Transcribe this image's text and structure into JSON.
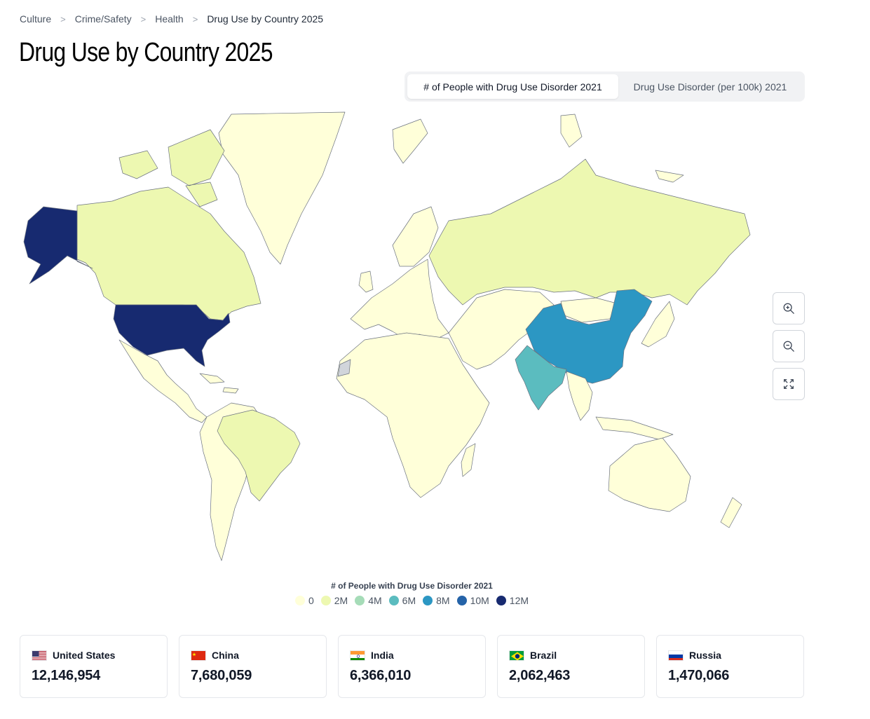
{
  "breadcrumb": {
    "items": [
      "Culture",
      "Crime/Safety",
      "Health",
      "Drug Use by Country 2025"
    ],
    "separator": ">"
  },
  "page": {
    "title": "Drug Use by Country 2025"
  },
  "tabs": [
    {
      "label": "# of People with Drug Use Disorder 2021",
      "active": true
    },
    {
      "label": "Drug Use Disorder (per 100k) 2021",
      "active": false
    }
  ],
  "map": {
    "metric": "# of People with Drug Use Disorder 2021",
    "colors": {
      "c0": "#ffffd9",
      "c2": "#edf8b1",
      "c4": "#c7e9b4",
      "c6": "#5bbcbf",
      "c8": "#2c97c3",
      "c10": "#2563a8",
      "c12": "#172a70",
      "nodata": "#d1d5db",
      "ocean": "#ffffff"
    },
    "highlighted_countries": [
      {
        "name": "United States",
        "bucket": "12M"
      },
      {
        "name": "China",
        "bucket": "8M"
      },
      {
        "name": "India",
        "bucket": "6M"
      },
      {
        "name": "Brazil",
        "bucket": "2M"
      },
      {
        "name": "Russia",
        "bucket": "2M"
      }
    ]
  },
  "zoom": {
    "in_icon": "zoom-in-icon",
    "out_icon": "zoom-out-icon",
    "fit_icon": "fullscreen-icon"
  },
  "legend": {
    "title": "# of People with Drug Use Disorder 2021",
    "items": [
      {
        "label": "0",
        "color": "#ffffd9"
      },
      {
        "label": "2M",
        "color": "#edf8b1"
      },
      {
        "label": "4M",
        "color": "#a6dcb8"
      },
      {
        "label": "6M",
        "color": "#5bbcbf"
      },
      {
        "label": "8M",
        "color": "#2c97c3"
      },
      {
        "label": "10M",
        "color": "#2563a8"
      },
      {
        "label": "12M",
        "color": "#172a70"
      }
    ]
  },
  "cards": [
    {
      "country": "United States",
      "value": "12,146,954",
      "flag": "us-flag-icon"
    },
    {
      "country": "China",
      "value": "7,680,059",
      "flag": "china-flag-icon"
    },
    {
      "country": "India",
      "value": "6,366,010",
      "flag": "india-flag-icon"
    },
    {
      "country": "Brazil",
      "value": "2,062,463",
      "flag": "brazil-flag-icon"
    },
    {
      "country": "Russia",
      "value": "1,470,066",
      "flag": "russia-flag-icon"
    }
  ]
}
